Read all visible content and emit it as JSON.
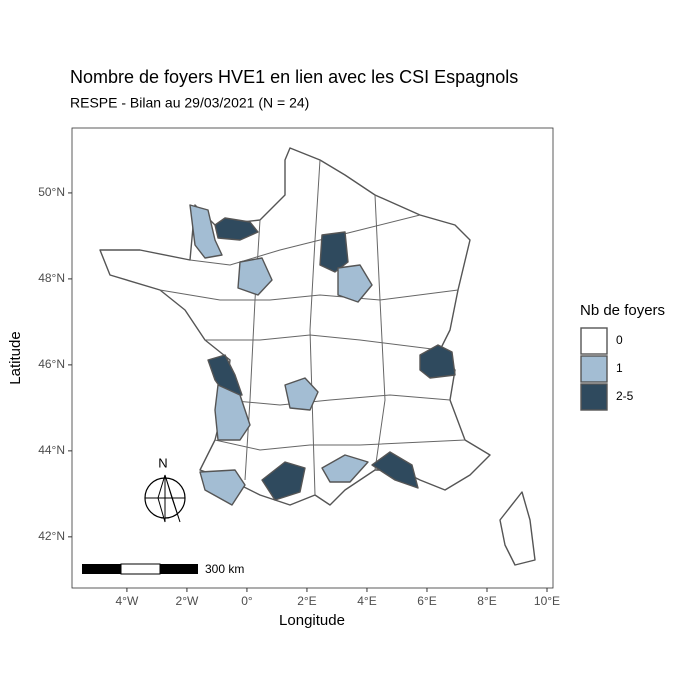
{
  "title": "Nombre de foyers HVE1 en lien avec les CSI Espagnols",
  "subtitle": "RESPE - Bilan au 29/03/2021 (N = 24)",
  "x_label": "Longitude",
  "y_label": "Latitude",
  "xlim": [
    -5.83,
    10.2
  ],
  "ylim": [
    40.81,
    51.51
  ],
  "xticks": [
    {
      "value": -4,
      "label": "4°W"
    },
    {
      "value": -2,
      "label": "2°W"
    },
    {
      "value": 0,
      "label": "0°"
    },
    {
      "value": 2,
      "label": "2°E"
    },
    {
      "value": 4,
      "label": "4°E"
    },
    {
      "value": 6,
      "label": "6°E"
    },
    {
      "value": 8,
      "label": "8°E"
    },
    {
      "value": 10,
      "label": "10°E"
    }
  ],
  "yticks": [
    {
      "value": 42,
      "label": "42°N"
    },
    {
      "value": 44,
      "label": "44°N"
    },
    {
      "value": 46,
      "label": "46°N"
    },
    {
      "value": 48,
      "label": "48°N"
    },
    {
      "value": 50,
      "label": "50°N"
    }
  ],
  "legend": {
    "title": "Nb de foyers",
    "items": [
      {
        "label": "0",
        "color": "#ffffff"
      },
      {
        "label": "1",
        "color": "#a3bdd3"
      },
      {
        "label": "2-5",
        "color": "#2f4a5e"
      }
    ]
  },
  "scale_bar": "300 km",
  "north": "N"
}
